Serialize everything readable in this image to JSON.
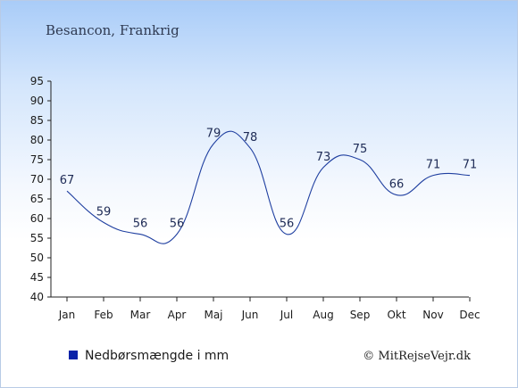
{
  "chart_data": {
    "type": "line",
    "title": "Besancon, Frankrig",
    "categories": [
      "Jan",
      "Feb",
      "Mar",
      "Apr",
      "Maj",
      "Jun",
      "Jul",
      "Aug",
      "Sep",
      "Okt",
      "Nov",
      "Dec"
    ],
    "series": [
      {
        "name": "Nedbørsmængde i mm",
        "values": [
          67,
          59,
          56,
          56,
          79,
          78,
          56,
          73,
          75,
          66,
          71,
          71
        ],
        "color": "#1f3fa0"
      }
    ],
    "data_labels": [
      "67",
      "59",
      "56",
      "56",
      "79",
      "78",
      "56",
      "73",
      "75",
      "66",
      "71",
      "71"
    ],
    "yticks": [
      "40",
      "45",
      "50",
      "55",
      "60",
      "65",
      "70",
      "75",
      "80",
      "85",
      "90",
      "95"
    ],
    "ylim": [
      40,
      95
    ],
    "grid": false,
    "legend": {
      "text": "Nedbørsmængde i mm",
      "color": "#0a23a8",
      "placement": "bottom-left"
    },
    "credit": "© MitRejseVejr.dk"
  }
}
